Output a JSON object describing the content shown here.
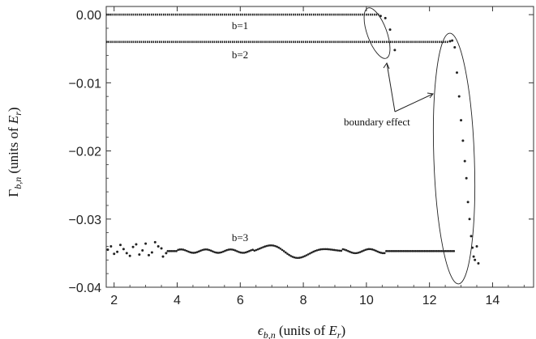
{
  "chart_data": {
    "type": "scatter",
    "xlabel": "ϵb,n (units of Er)",
    "ylabel": "Γb,n (units of Er)",
    "xlim": [
      1.75,
      15.3
    ],
    "ylim": [
      -0.04,
      0.0012
    ],
    "x_ticks": [
      2,
      4,
      6,
      8,
      10,
      12,
      14
    ],
    "x_tick_labels": [
      "2",
      "4",
      "6",
      "8",
      "10",
      "12",
      "14"
    ],
    "y_ticks": [
      0.0,
      -0.01,
      -0.02,
      -0.03,
      -0.04
    ],
    "y_tick_labels": [
      "0.00",
      "−0.01",
      "−0.02",
      "−0.03",
      "−0.04"
    ],
    "grid": false,
    "series": [
      {
        "name": "b=1",
        "dense_segment": {
          "x_start": 1.75,
          "x_end": 10.4,
          "y": 0.0
        },
        "points": [
          [
            10.45,
            -0.0002
          ],
          [
            10.6,
            -0.0005
          ],
          [
            10.75,
            -0.0022
          ],
          [
            10.9,
            -0.0052
          ]
        ]
      },
      {
        "name": "b=2",
        "dense_segment": {
          "x_start": 1.75,
          "x_end": 12.6,
          "y": -0.004
        },
        "points": [
          [
            12.65,
            -0.0039
          ],
          [
            12.72,
            -0.0038
          ],
          [
            12.8,
            -0.0048
          ],
          [
            12.87,
            -0.0085
          ],
          [
            12.94,
            -0.012
          ],
          [
            13.0,
            -0.0155
          ],
          [
            13.06,
            -0.0185
          ],
          [
            13.12,
            -0.0215
          ],
          [
            13.17,
            -0.024
          ],
          [
            13.22,
            -0.0275
          ],
          [
            13.27,
            -0.03
          ],
          [
            13.32,
            -0.0325
          ],
          [
            13.36,
            -0.0342
          ],
          [
            13.4,
            -0.0355
          ],
          [
            13.44,
            -0.036
          ],
          [
            13.5,
            -0.034
          ],
          [
            13.55,
            -0.0365
          ]
        ]
      },
      {
        "name": "b=3",
        "wavy_segment": {
          "x_start": 3.7,
          "x_end": 12.8,
          "y": -0.0347
        },
        "points": [
          [
            1.8,
            -0.0345
          ],
          [
            2.0,
            -0.0351
          ],
          [
            2.2,
            -0.0338
          ],
          [
            2.4,
            -0.035
          ],
          [
            2.6,
            -0.0341
          ],
          [
            2.8,
            -0.0352
          ],
          [
            3.0,
            -0.0336
          ],
          [
            3.2,
            -0.0349
          ],
          [
            3.4,
            -0.034
          ],
          [
            3.55,
            -0.0355
          ],
          [
            1.9,
            -0.034
          ],
          [
            2.1,
            -0.0348
          ],
          [
            2.3,
            -0.0344
          ],
          [
            2.5,
            -0.0354
          ],
          [
            2.7,
            -0.0337
          ],
          [
            2.9,
            -0.0346
          ],
          [
            3.1,
            -0.0353
          ],
          [
            3.3,
            -0.0334
          ],
          [
            3.5,
            -0.0343
          ],
          [
            3.65,
            -0.035
          ]
        ]
      }
    ],
    "annotations": {
      "series_labels": [
        {
          "text": "b=1",
          "x": 7.0,
          "y": -0.0016
        },
        {
          "text": "b=2",
          "x": 7.0,
          "y": -0.0059
        },
        {
          "text": "b=3",
          "x": 7.0,
          "y": -0.0326
        }
      ],
      "boundary_label": "boundary effect"
    }
  }
}
